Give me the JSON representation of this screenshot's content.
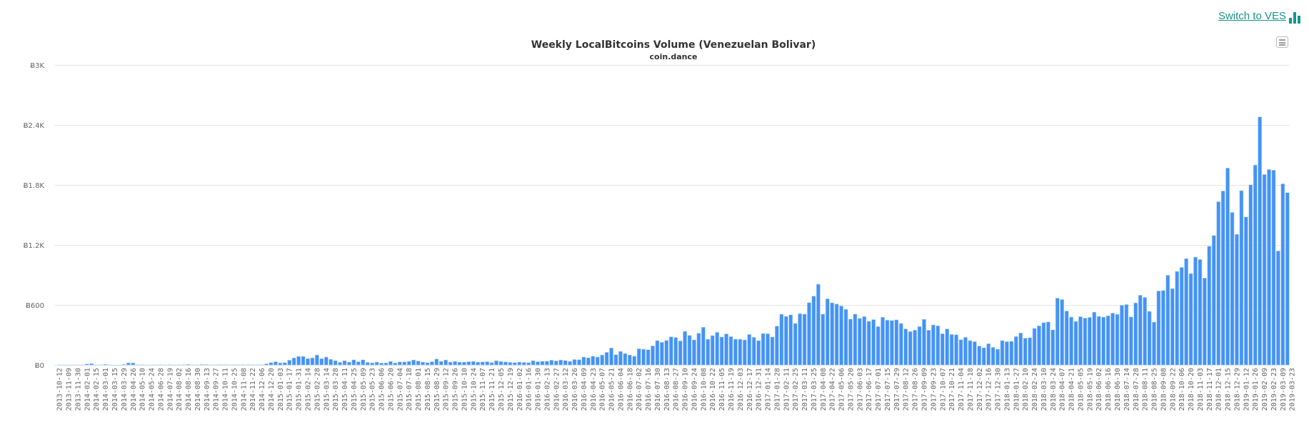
{
  "header": {
    "switch_label": "Switch to VES",
    "switch_icon": "bar-chart-icon",
    "accent_color": "#17968a"
  },
  "menu": {
    "icon": "hamburger-menu-icon"
  },
  "chart_data": {
    "type": "bar",
    "title": "Weekly LocalBitcoins Volume (Venezuelan Bolivar)",
    "subtitle": "coin.dance",
    "xlabel": "",
    "ylabel": "",
    "ylim": [
      0,
      3000
    ],
    "y_ticks": [
      0,
      600,
      1200,
      1800,
      2400,
      3000
    ],
    "y_tick_labels": [
      "Ƀ0",
      "Ƀ600",
      "Ƀ1.2K",
      "Ƀ1.8K",
      "Ƀ2.4K",
      "Ƀ3K"
    ],
    "grid": true,
    "legend": "none",
    "bar_color": "#4393f5",
    "tick_label_every": 2,
    "tick_labels": [
      "2013-10-12",
      "2013-11-09",
      "2013-11-30",
      "2014-02-01",
      "2014-02-15",
      "2014-03-01",
      "2014-03-15",
      "2014-03-29",
      "2014-04-26",
      "2014-05-10",
      "2014-05-24",
      "2014-06-28",
      "2014-07-19",
      "2014-08-02",
      "2014-08-16",
      "2014-08-30",
      "2014-09-13",
      "2014-09-27",
      "2014-10-11",
      "2014-10-25",
      "2014-11-08",
      "2014-11-22",
      "2014-12-06",
      "2014-12-20",
      "2015-01-03",
      "2015-01-17",
      "2015-01-31",
      "2015-02-14",
      "2015-02-28",
      "2015-03-14",
      "2015-03-28",
      "2015-04-11",
      "2015-04-25",
      "2015-05-09",
      "2015-05-23",
      "2015-06-06",
      "2015-06-20",
      "2015-07-04",
      "2015-07-18",
      "2015-08-01",
      "2015-08-15",
      "2015-08-29",
      "2015-09-12",
      "2015-09-26",
      "2015-10-10",
      "2015-10-24",
      "2015-11-07",
      "2015-11-21",
      "2015-12-05",
      "2015-12-19",
      "2016-01-02",
      "2016-01-16",
      "2016-01-30",
      "2016-02-13",
      "2016-02-27",
      "2016-03-12",
      "2016-03-26",
      "2016-04-09",
      "2016-04-23",
      "2016-05-07",
      "2016-05-21",
      "2016-06-04",
      "2016-06-18",
      "2016-07-02",
      "2016-07-16",
      "2016-07-30",
      "2016-08-13",
      "2016-08-27",
      "2016-09-10",
      "2016-09-24",
      "2016-10-08",
      "2016-10-22",
      "2016-11-05",
      "2016-11-19",
      "2016-12-03",
      "2016-12-17",
      "2016-12-31",
      "2017-01-14",
      "2017-01-28",
      "2017-02-11",
      "2017-02-25",
      "2017-03-11",
      "2017-03-25",
      "2017-04-08",
      "2017-04-22",
      "2017-05-06",
      "2017-05-20",
      "2017-06-03",
      "2017-06-17",
      "2017-07-01",
      "2017-07-15",
      "2017-07-29",
      "2017-08-12",
      "2017-08-26",
      "2017-09-09",
      "2017-09-23",
      "2017-10-07",
      "2017-10-21",
      "2017-11-04",
      "2017-11-18",
      "2017-12-02",
      "2017-12-16",
      "2017-12-30",
      "2018-01-13",
      "2018-01-27",
      "2018-02-10",
      "2018-02-24",
      "2018-03-10",
      "2018-03-24",
      "2018-04-07",
      "2018-04-21",
      "2018-05-05",
      "2018-05-19",
      "2018-06-02",
      "2018-06-16",
      "2018-06-30",
      "2018-07-14",
      "2018-07-28",
      "2018-08-11",
      "2018-08-25",
      "2018-09-08",
      "2018-09-22",
      "2018-10-06",
      "2018-10-20",
      "2018-11-03",
      "2018-11-17",
      "2018-12-01",
      "2018-12-15",
      "2018-12-29",
      "2019-01-12",
      "2019-01-26",
      "2019-02-09",
      "2019-02-23",
      "2019-03-09",
      "2019-03-23"
    ],
    "values": [
      1,
      2,
      0,
      2,
      0,
      2,
      10,
      14,
      0,
      2,
      7,
      2,
      0,
      0,
      7,
      21,
      21,
      2,
      3,
      0,
      1,
      0,
      3,
      0,
      3,
      1,
      3,
      3,
      7,
      2,
      2,
      6,
      5,
      2,
      3,
      4,
      4,
      3,
      4,
      3,
      4,
      4,
      3,
      3,
      3,
      12,
      24,
      33,
      21,
      24,
      48,
      71,
      86,
      86,
      64,
      71,
      100,
      64,
      79,
      57,
      43,
      26,
      43,
      29,
      52,
      33,
      52,
      26,
      21,
      29,
      19,
      21,
      36,
      21,
      31,
      31,
      36,
      50,
      40,
      29,
      24,
      33,
      60,
      36,
      50,
      29,
      36,
      29,
      29,
      33,
      36,
      29,
      31,
      33,
      24,
      43,
      36,
      31,
      26,
      24,
      29,
      26,
      24,
      43,
      33,
      38,
      38,
      48,
      41,
      50,
      45,
      36,
      55,
      53,
      79,
      72,
      88,
      79,
      100,
      127,
      170,
      103,
      136,
      115,
      100,
      88,
      163,
      158,
      153,
      191,
      244,
      227,
      246,
      282,
      275,
      241,
      337,
      296,
      251,
      318,
      378,
      258,
      294,
      327,
      280,
      311,
      284,
      258,
      258,
      251,
      306,
      277,
      244,
      315,
      313,
      280,
      389,
      508,
      486,
      502,
      416,
      514,
      509,
      624,
      689,
      808,
      509,
      662,
      622,
      610,
      590,
      557,
      459,
      509,
      466,
      485,
      437,
      454,
      385,
      478,
      449,
      445,
      452,
      416,
      361,
      335,
      349,
      385,
      457,
      347,
      400,
      392,
      313,
      361,
      306,
      303,
      253,
      277,
      244,
      234,
      189,
      172,
      213,
      177,
      158,
      244,
      234,
      237,
      285,
      320,
      268,
      273,
      366,
      392,
      424,
      431,
      352,
      669,
      655,
      540,
      479,
      436,
      483,
      469,
      476,
      529,
      486,
      479,
      493,
      519,
      507,
      598,
      605,
      481,
      621,
      698,
      676,
      536,
      429,
      740,
      745,
      898,
      764,
      936,
      976,
      1064,
      914,
      1079,
      1055,
      869,
      1188,
      1295,
      1633,
      1740,
      1969,
      1526,
      1307,
      1743,
      1481,
      1802,
      2000,
      2481,
      1905,
      1955,
      1948,
      1140,
      1812,
      1724
    ]
  }
}
